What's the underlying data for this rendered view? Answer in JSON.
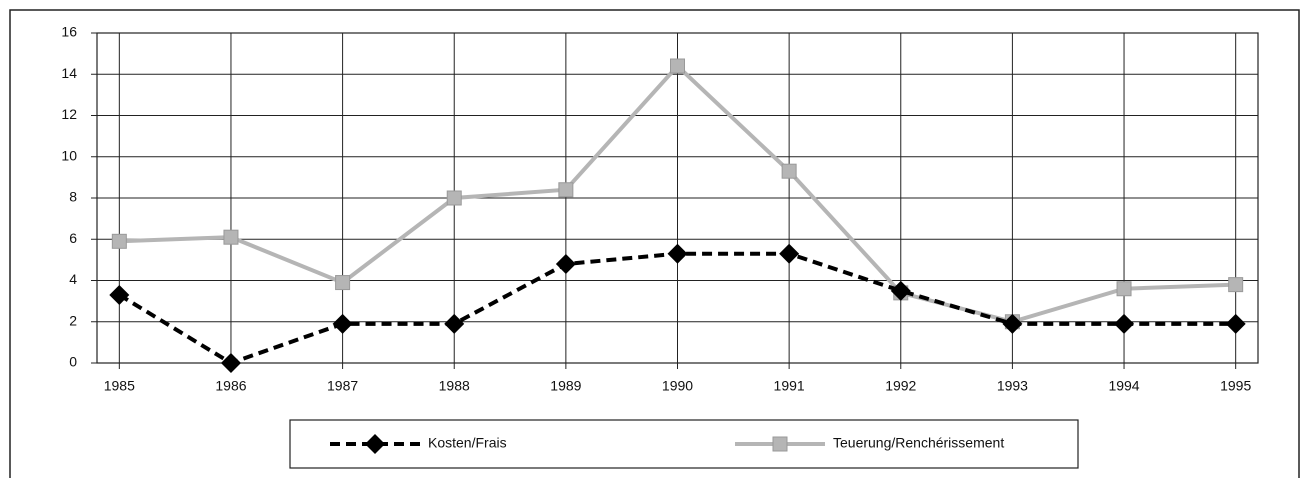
{
  "chart_data": {
    "type": "line",
    "x": [
      1985,
      1986,
      1987,
      1988,
      1989,
      1990,
      1991,
      1992,
      1993,
      1994,
      1995
    ],
    "xlim": [
      1984.8,
      1995.2
    ],
    "xticks": [
      1985,
      1986,
      1987,
      1988,
      1989,
      1990,
      1991,
      1992,
      1993,
      1994,
      1995
    ],
    "ylim": [
      0,
      16
    ],
    "yticks": [
      0,
      2,
      4,
      6,
      8,
      10,
      12,
      14,
      16
    ],
    "grid": true,
    "legend": "bottom",
    "series": [
      {
        "name": "Kosten/Frais",
        "color": "#000000",
        "dash": true,
        "marker": "diamond",
        "values": [
          3.3,
          0,
          1.9,
          1.9,
          4.8,
          5.3,
          5.3,
          3.5,
          1.9,
          1.9,
          1.9
        ]
      },
      {
        "name": "Teuerung/Renchérissement",
        "color": "#b5b5b5",
        "dash": false,
        "marker": "square",
        "values": [
          5.9,
          6.1,
          3.9,
          8.0,
          8.4,
          14.4,
          9.3,
          3.4,
          2.0,
          3.6,
          3.8
        ]
      }
    ]
  }
}
